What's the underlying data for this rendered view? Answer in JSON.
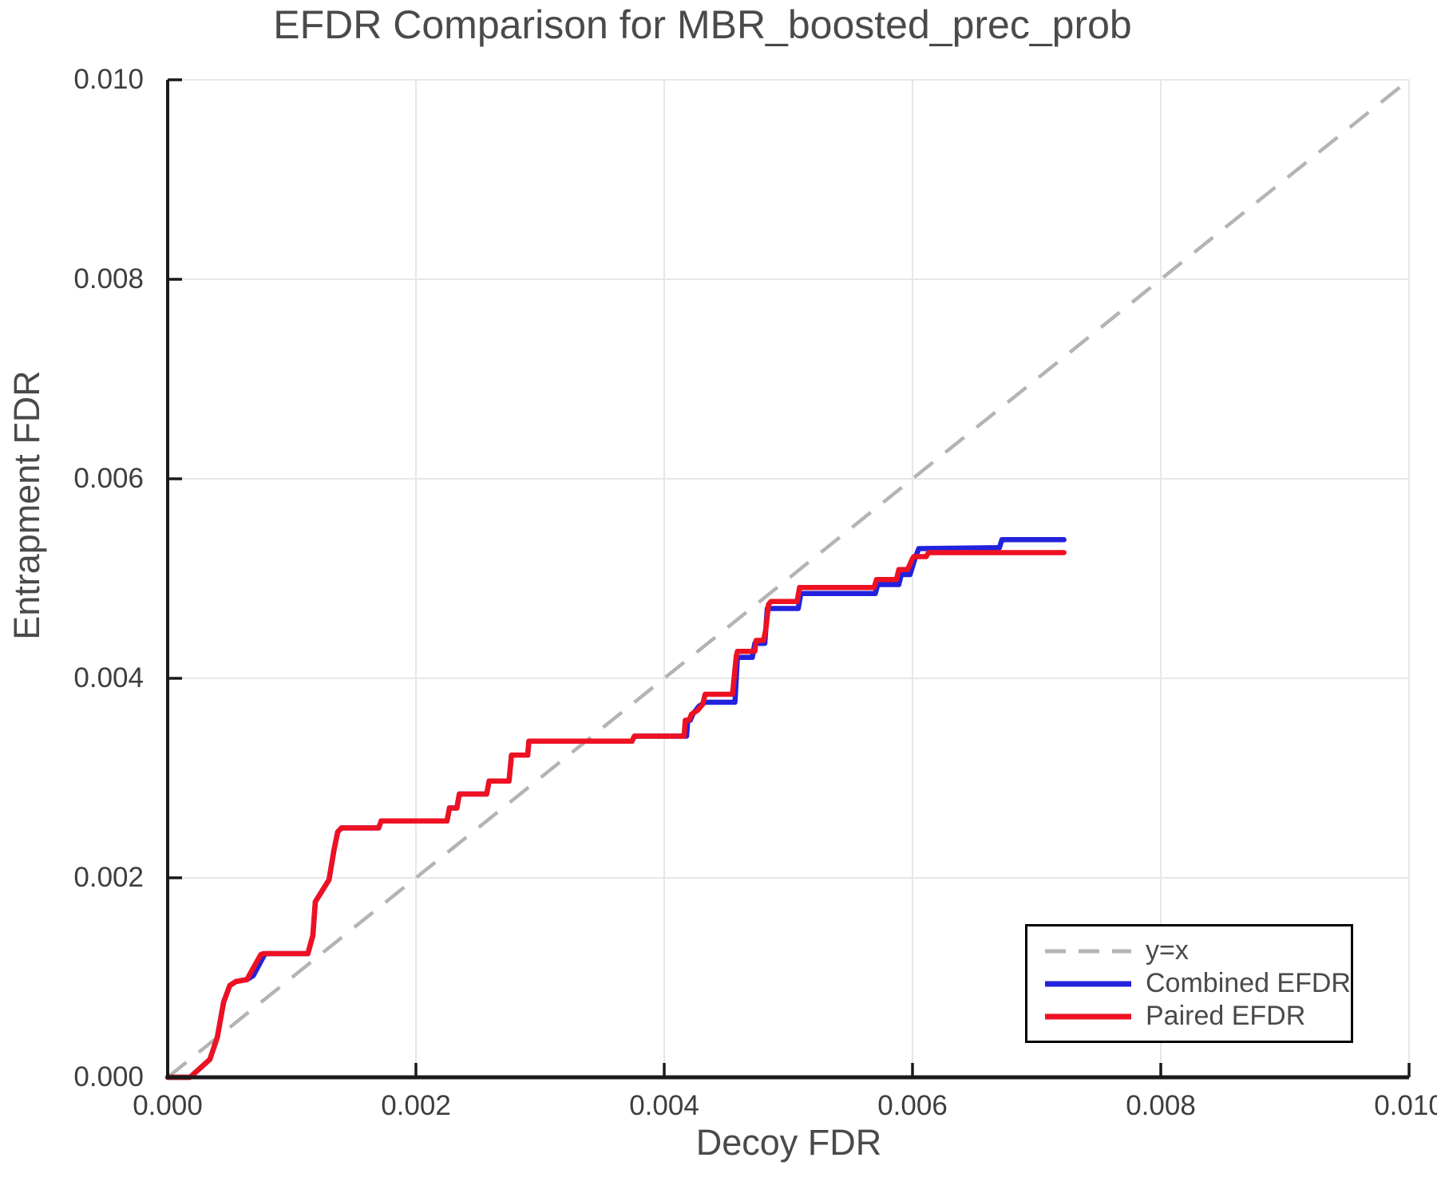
{
  "title": "EFDR Comparison for MBR_boosted_prec_prob",
  "colors": {
    "identity_line": "#b4b4b4",
    "combined_efdr": "#2222dd",
    "paired_efdr": "#ee1122",
    "grid": "#e7e7e7",
    "axis": "#1a1a1a",
    "text": "#4a4a4a"
  },
  "chart_data": {
    "type": "line",
    "title": "EFDR Comparison for MBR_boosted_prec_prob",
    "xlabel": "Decoy FDR",
    "ylabel": "Entrapment FDR",
    "xlim": [
      0.0,
      0.01
    ],
    "ylim": [
      0.0,
      0.01
    ],
    "grid": true,
    "legend_position": "lower right",
    "x_ticks": {
      "values": [
        0.0,
        0.002,
        0.004,
        0.006,
        0.008,
        0.01
      ],
      "labels": [
        "0.000",
        "0.002",
        "0.004",
        "0.006",
        "0.008",
        "0.010"
      ]
    },
    "y_ticks": {
      "values": [
        0.0,
        0.002,
        0.004,
        0.006,
        0.008,
        0.01
      ],
      "labels": [
        "0.000",
        "0.002",
        "0.004",
        "0.006",
        "0.008",
        "0.010"
      ]
    },
    "reference_line": {
      "label": "y=x",
      "style": "dashed",
      "from": [
        0.0,
        0.0
      ],
      "to": [
        0.01,
        0.01
      ]
    },
    "series": [
      {
        "name": "Combined EFDR",
        "color_key": "combined_efdr",
        "points": [
          [
            0.0,
            0.0
          ],
          [
            0.00018,
            0.0
          ],
          [
            0.00034,
            0.00018
          ],
          [
            0.0004,
            0.0004
          ],
          [
            0.00045,
            0.00075
          ],
          [
            0.0005,
            0.00092
          ],
          [
            0.00055,
            0.00096
          ],
          [
            0.00064,
            0.00098
          ],
          [
            0.00069,
            0.00102
          ],
          [
            0.00078,
            0.00123
          ],
          [
            0.0008,
            0.00124
          ],
          [
            0.00113,
            0.00124
          ],
          [
            0.00116,
            0.00138
          ],
          [
            0.00117,
            0.00142
          ],
          [
            0.00119,
            0.00176
          ],
          [
            0.0013,
            0.00198
          ],
          [
            0.00134,
            0.00228
          ],
          [
            0.00137,
            0.00246
          ],
          [
            0.0014,
            0.0025
          ],
          [
            0.0017,
            0.0025
          ],
          [
            0.00172,
            0.00257
          ],
          [
            0.00225,
            0.00257
          ],
          [
            0.00227,
            0.0027
          ],
          [
            0.00233,
            0.0027
          ],
          [
            0.00235,
            0.00284
          ],
          [
            0.00257,
            0.00284
          ],
          [
            0.00259,
            0.00297
          ],
          [
            0.00275,
            0.00297
          ],
          [
            0.00277,
            0.00323
          ],
          [
            0.0029,
            0.00323
          ],
          [
            0.00291,
            0.00337
          ],
          [
            0.00374,
            0.00337
          ],
          [
            0.00376,
            0.00342
          ],
          [
            0.00418,
            0.00342
          ],
          [
            0.00419,
            0.00358
          ],
          [
            0.00421,
            0.00358
          ],
          [
            0.00423,
            0.00364
          ],
          [
            0.00428,
            0.00372
          ],
          [
            0.00433,
            0.00376
          ],
          [
            0.00457,
            0.00376
          ],
          [
            0.00459,
            0.00421
          ],
          [
            0.00471,
            0.00421
          ],
          [
            0.00473,
            0.00435
          ],
          [
            0.00481,
            0.00435
          ],
          [
            0.00483,
            0.0047
          ],
          [
            0.00508,
            0.0047
          ],
          [
            0.0051,
            0.00485
          ],
          [
            0.0057,
            0.00485
          ],
          [
            0.00572,
            0.00494
          ],
          [
            0.00589,
            0.00494
          ],
          [
            0.00591,
            0.00504
          ],
          [
            0.00598,
            0.00504
          ],
          [
            0.00602,
            0.0052
          ],
          [
            0.00605,
            0.0053
          ],
          [
            0.0067,
            0.00531
          ],
          [
            0.00672,
            0.00539
          ],
          [
            0.00722,
            0.00539
          ]
        ]
      },
      {
        "name": "Paired EFDR",
        "color_key": "paired_efdr",
        "points": [
          [
            0.0,
            0.0
          ],
          [
            0.00018,
            0.0
          ],
          [
            0.00034,
            0.00018
          ],
          [
            0.0004,
            0.0004
          ],
          [
            0.00045,
            0.00075
          ],
          [
            0.0005,
            0.00092
          ],
          [
            0.00055,
            0.00096
          ],
          [
            0.00064,
            0.00098
          ],
          [
            0.00066,
            0.00103
          ],
          [
            0.00075,
            0.00123
          ],
          [
            0.00077,
            0.00124
          ],
          [
            0.00113,
            0.00124
          ],
          [
            0.00116,
            0.00138
          ],
          [
            0.00117,
            0.00142
          ],
          [
            0.00119,
            0.00176
          ],
          [
            0.0013,
            0.00198
          ],
          [
            0.00134,
            0.00228
          ],
          [
            0.00137,
            0.00246
          ],
          [
            0.0014,
            0.0025
          ],
          [
            0.0017,
            0.0025
          ],
          [
            0.00172,
            0.00257
          ],
          [
            0.00225,
            0.00257
          ],
          [
            0.00227,
            0.0027
          ],
          [
            0.00233,
            0.0027
          ],
          [
            0.00235,
            0.00284
          ],
          [
            0.00257,
            0.00284
          ],
          [
            0.00259,
            0.00297
          ],
          [
            0.00275,
            0.00297
          ],
          [
            0.00277,
            0.00323
          ],
          [
            0.0029,
            0.00323
          ],
          [
            0.00291,
            0.00337
          ],
          [
            0.00374,
            0.00337
          ],
          [
            0.00376,
            0.00342
          ],
          [
            0.00416,
            0.00342
          ],
          [
            0.00417,
            0.00358
          ],
          [
            0.0042,
            0.00358
          ],
          [
            0.00422,
            0.00364
          ],
          [
            0.00427,
            0.00368
          ],
          [
            0.00431,
            0.00374
          ],
          [
            0.00433,
            0.00384
          ],
          [
            0.00455,
            0.00384
          ],
          [
            0.00458,
            0.00422
          ],
          [
            0.00459,
            0.00427
          ],
          [
            0.00473,
            0.00427
          ],
          [
            0.00474,
            0.00438
          ],
          [
            0.0048,
            0.00438
          ],
          [
            0.00482,
            0.0045
          ],
          [
            0.00484,
            0.00474
          ],
          [
            0.00486,
            0.00477
          ],
          [
            0.00507,
            0.00477
          ],
          [
            0.00509,
            0.00491
          ],
          [
            0.00569,
            0.00491
          ],
          [
            0.00571,
            0.00499
          ],
          [
            0.00587,
            0.00499
          ],
          [
            0.00589,
            0.00509
          ],
          [
            0.00596,
            0.00509
          ],
          [
            0.006,
            0.0052
          ],
          [
            0.00601,
            0.00522
          ],
          [
            0.00611,
            0.00522
          ],
          [
            0.00613,
            0.00526
          ],
          [
            0.00722,
            0.00526
          ]
        ]
      }
    ]
  },
  "legend": {
    "identity_label": "y=x"
  }
}
